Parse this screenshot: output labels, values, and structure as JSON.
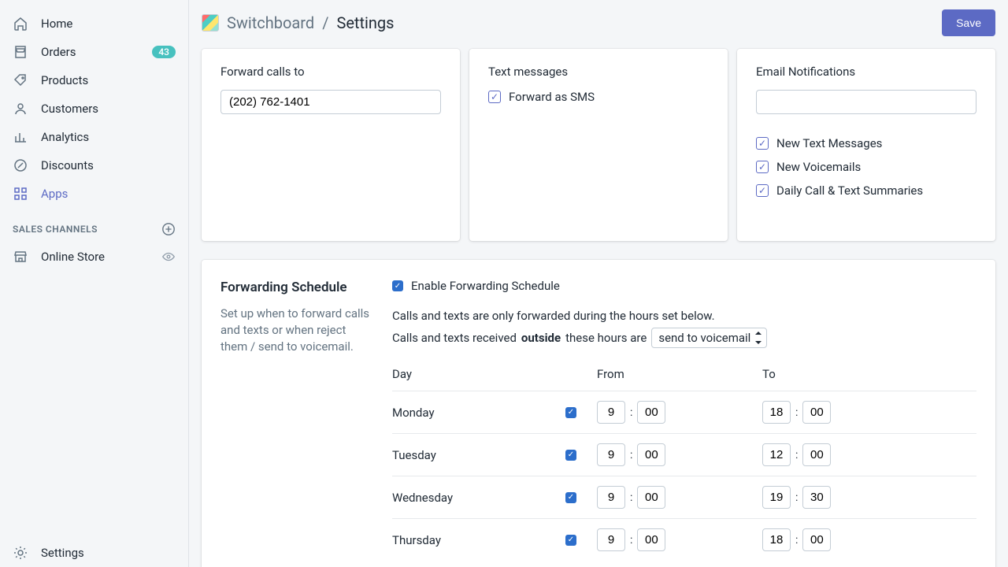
{
  "sidebar": {
    "items": [
      {
        "label": "Home",
        "icon": "home"
      },
      {
        "label": "Orders",
        "icon": "orders",
        "badge": "43"
      },
      {
        "label": "Products",
        "icon": "products"
      },
      {
        "label": "Customers",
        "icon": "customers"
      },
      {
        "label": "Analytics",
        "icon": "analytics"
      },
      {
        "label": "Discounts",
        "icon": "discounts"
      },
      {
        "label": "Apps",
        "icon": "apps",
        "active": true
      }
    ],
    "channels_header": "SALES CHANNELS",
    "channels": [
      {
        "label": "Online Store",
        "icon": "store"
      }
    ],
    "settings_label": "Settings"
  },
  "breadcrumb": {
    "app": "Switchboard",
    "sep": "/",
    "page": "Settings"
  },
  "save_label": "Save",
  "forward_card": {
    "title": "Forward calls to",
    "value": "(202) 762-1401"
  },
  "sms_card": {
    "title": "Text messages",
    "option": "Forward as SMS",
    "checked": true
  },
  "email_card": {
    "title": "Email Notifications",
    "value": "",
    "options": [
      {
        "label": "New Text Messages",
        "checked": true
      },
      {
        "label": "New Voicemails",
        "checked": true
      },
      {
        "label": "Daily Call & Text Summaries",
        "checked": true
      }
    ]
  },
  "schedule": {
    "title": "Forwarding Schedule",
    "desc": "Set up when to forward calls and texts or when reject them / send to voicemail.",
    "enable_label": "Enable Forwarding Schedule",
    "enable_checked": true,
    "help1": "Calls and texts are only forwarded during the hours set below.",
    "help2_a": "Calls and texts received ",
    "help2_b": "outside",
    "help2_c": " these hours are",
    "outside_action": "send to voicemail",
    "columns": {
      "day": "Day",
      "from": "From",
      "to": "To"
    },
    "rows": [
      {
        "day": "Monday",
        "enabled": true,
        "from_h": "9",
        "from_m": "00",
        "to_h": "18",
        "to_m": "00"
      },
      {
        "day": "Tuesday",
        "enabled": true,
        "from_h": "9",
        "from_m": "00",
        "to_h": "12",
        "to_m": "00"
      },
      {
        "day": "Wednesday",
        "enabled": true,
        "from_h": "9",
        "from_m": "00",
        "to_h": "19",
        "to_m": "30"
      },
      {
        "day": "Thursday",
        "enabled": true,
        "from_h": "9",
        "from_m": "00",
        "to_h": "18",
        "to_m": "00"
      }
    ]
  },
  "colors": {
    "accent": "#5c6ac4",
    "badge": "#47c1bf",
    "check_blue": "#2c6ecb",
    "text_muted": "#637381",
    "border": "#c4cdd5",
    "bg": "#f4f6f8"
  }
}
